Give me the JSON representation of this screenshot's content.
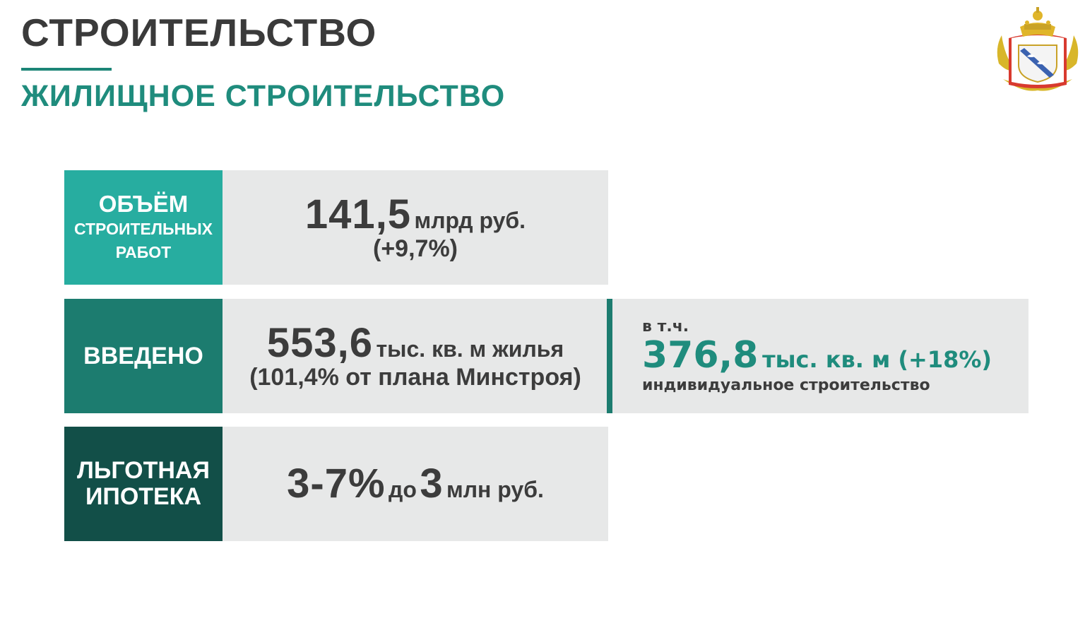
{
  "header": {
    "title": "СТРОИТЕЛЬСТВО",
    "subtitle": "ЖИЛИЩНОЕ СТРОИТЕЛЬСТВО"
  },
  "emblem": {
    "icon": "kursk-coat-of-arms-icon"
  },
  "colors": {
    "accent_light": "#27ada0",
    "accent_mid": "#1c7c6f",
    "accent_dark": "#124f48",
    "panel_bg": "#e7e8e8",
    "text_dark": "#3c3c3c",
    "title_green": "#1f8c7d"
  },
  "rows": [
    {
      "label_lines": [
        "ОБЪЁМ",
        "СТРОИТЕЛЬНЫХ",
        "РАБОТ"
      ],
      "value": "141,5",
      "unit": "млрд руб.",
      "note": "(+9,7%)"
    },
    {
      "label_lines": [
        "ВВЕДЕНО"
      ],
      "value": "553,6",
      "unit": "тыс. кв. м жилья",
      "note": "(101,4% от плана Минстроя)"
    },
    {
      "label_lines": [
        "ЛЬГОТНАЯ",
        "ИПОТЕКА"
      ],
      "value": "3-7%",
      "middle": "до",
      "value2": "3",
      "unit": "млн руб."
    }
  ],
  "side_panel": {
    "prefix": "в т.ч.",
    "value": "376,8",
    "unit": "тыс. кв. м (+18%)",
    "description": "индивидуальное строительство"
  }
}
